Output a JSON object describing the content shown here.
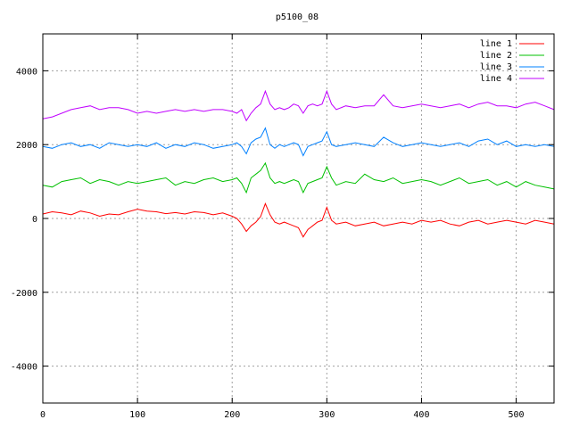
{
  "chart_data": {
    "type": "line",
    "title": "p5100_08",
    "xlabel": "",
    "ylabel": "",
    "xlim": [
      0,
      540
    ],
    "ylim": [
      -5000,
      5000
    ],
    "xticks": [
      0,
      100,
      200,
      300,
      400,
      500
    ],
    "yticks": [
      -4000,
      -2000,
      0,
      2000,
      4000
    ],
    "grid": true,
    "legend_position": "top-right",
    "series": [
      {
        "name": "line 1",
        "color": "#ff0000",
        "x": [
          0,
          10,
          20,
          30,
          40,
          50,
          60,
          70,
          80,
          90,
          100,
          110,
          120,
          130,
          140,
          150,
          160,
          170,
          180,
          190,
          200,
          205,
          210,
          215,
          220,
          225,
          230,
          235,
          240,
          245,
          250,
          255,
          260,
          265,
          270,
          275,
          280,
          285,
          290,
          295,
          300,
          305,
          310,
          320,
          330,
          340,
          350,
          360,
          370,
          380,
          390,
          400,
          410,
          420,
          430,
          440,
          450,
          460,
          470,
          480,
          490,
          500,
          510,
          520,
          530,
          540
        ],
        "y": [
          120,
          180,
          150,
          100,
          200,
          150,
          60,
          120,
          100,
          180,
          250,
          200,
          180,
          130,
          160,
          120,
          180,
          160,
          100,
          150,
          60,
          0,
          -150,
          -350,
          -200,
          -100,
          50,
          400,
          100,
          -100,
          -150,
          -100,
          -150,
          -200,
          -250,
          -500,
          -300,
          -200,
          -100,
          -50,
          300,
          -50,
          -150,
          -100,
          -200,
          -150,
          -100,
          -200,
          -150,
          -100,
          -150,
          -50,
          -100,
          -50,
          -150,
          -200,
          -100,
          -50,
          -150,
          -100,
          -50,
          -100,
          -150,
          -50,
          -100,
          -150
        ]
      },
      {
        "name": "line 2",
        "color": "#00c000",
        "x": [
          0,
          10,
          20,
          30,
          40,
          50,
          60,
          70,
          80,
          90,
          100,
          110,
          120,
          130,
          140,
          150,
          160,
          170,
          180,
          190,
          200,
          205,
          210,
          215,
          220,
          225,
          230,
          235,
          240,
          245,
          250,
          255,
          260,
          265,
          270,
          275,
          280,
          285,
          290,
          295,
          300,
          305,
          310,
          320,
          330,
          340,
          350,
          360,
          370,
          380,
          390,
          400,
          410,
          420,
          430,
          440,
          450,
          460,
          470,
          480,
          490,
          500,
          510,
          520,
          530,
          540
        ],
        "y": [
          900,
          850,
          1000,
          1050,
          1100,
          950,
          1050,
          1000,
          900,
          1000,
          950,
          1000,
          1050,
          1100,
          900,
          1000,
          950,
          1050,
          1100,
          1000,
          1050,
          1100,
          950,
          700,
          1100,
          1200,
          1300,
          1500,
          1100,
          950,
          1000,
          950,
          1000,
          1050,
          1000,
          700,
          950,
          1000,
          1050,
          1100,
          1400,
          1100,
          900,
          1000,
          950,
          1200,
          1050,
          1000,
          1100,
          950,
          1000,
          1050,
          1000,
          900,
          1000,
          1100,
          950,
          1000,
          1050,
          900,
          1000,
          850,
          1000,
          900,
          850,
          800
        ]
      },
      {
        "name": "line 3",
        "color": "#0080ff",
        "x": [
          0,
          10,
          20,
          30,
          40,
          50,
          60,
          70,
          80,
          90,
          100,
          110,
          120,
          130,
          140,
          150,
          160,
          170,
          180,
          190,
          200,
          205,
          210,
          215,
          220,
          225,
          230,
          235,
          240,
          245,
          250,
          255,
          260,
          265,
          270,
          275,
          280,
          285,
          290,
          295,
          300,
          305,
          310,
          320,
          330,
          340,
          350,
          360,
          370,
          380,
          390,
          400,
          410,
          420,
          430,
          440,
          450,
          460,
          470,
          480,
          490,
          500,
          510,
          520,
          530,
          540
        ],
        "y": [
          1950,
          1900,
          2000,
          2050,
          1950,
          2000,
          1900,
          2050,
          2000,
          1950,
          2000,
          1950,
          2050,
          1900,
          2000,
          1950,
          2050,
          2000,
          1900,
          1950,
          2000,
          2050,
          1950,
          1750,
          2050,
          2150,
          2200,
          2450,
          2000,
          1900,
          2000,
          1950,
          2000,
          2050,
          2000,
          1700,
          1950,
          2000,
          2050,
          2100,
          2350,
          2000,
          1950,
          2000,
          2050,
          2000,
          1950,
          2200,
          2050,
          1950,
          2000,
          2050,
          2000,
          1950,
          2000,
          2050,
          1950,
          2100,
          2150,
          2000,
          2100,
          1950,
          2000,
          1950,
          2000,
          1950
        ]
      },
      {
        "name": "line 4",
        "color": "#c000ff",
        "x": [
          0,
          10,
          20,
          30,
          40,
          50,
          60,
          70,
          80,
          90,
          100,
          110,
          120,
          130,
          140,
          150,
          160,
          170,
          180,
          190,
          200,
          205,
          210,
          215,
          220,
          225,
          230,
          235,
          240,
          245,
          250,
          255,
          260,
          265,
          270,
          275,
          280,
          285,
          290,
          295,
          300,
          305,
          310,
          320,
          330,
          340,
          350,
          360,
          370,
          380,
          390,
          400,
          410,
          420,
          430,
          440,
          450,
          460,
          470,
          480,
          490,
          500,
          510,
          520,
          530,
          540
        ],
        "y": [
          2700,
          2750,
          2850,
          2950,
          3000,
          3050,
          2950,
          3000,
          3000,
          2950,
          2850,
          2900,
          2850,
          2900,
          2950,
          2900,
          2950,
          2900,
          2950,
          2950,
          2900,
          2850,
          2950,
          2650,
          2850,
          3000,
          3100,
          3450,
          3100,
          2950,
          3000,
          2950,
          3000,
          3100,
          3050,
          2850,
          3050,
          3100,
          3050,
          3100,
          3450,
          3100,
          2950,
          3050,
          3000,
          3050,
          3050,
          3350,
          3050,
          3000,
          3050,
          3100,
          3050,
          3000,
          3050,
          3100,
          3000,
          3100,
          3150,
          3050,
          3050,
          3000,
          3100,
          3150,
          3050,
          2950
        ]
      }
    ]
  }
}
